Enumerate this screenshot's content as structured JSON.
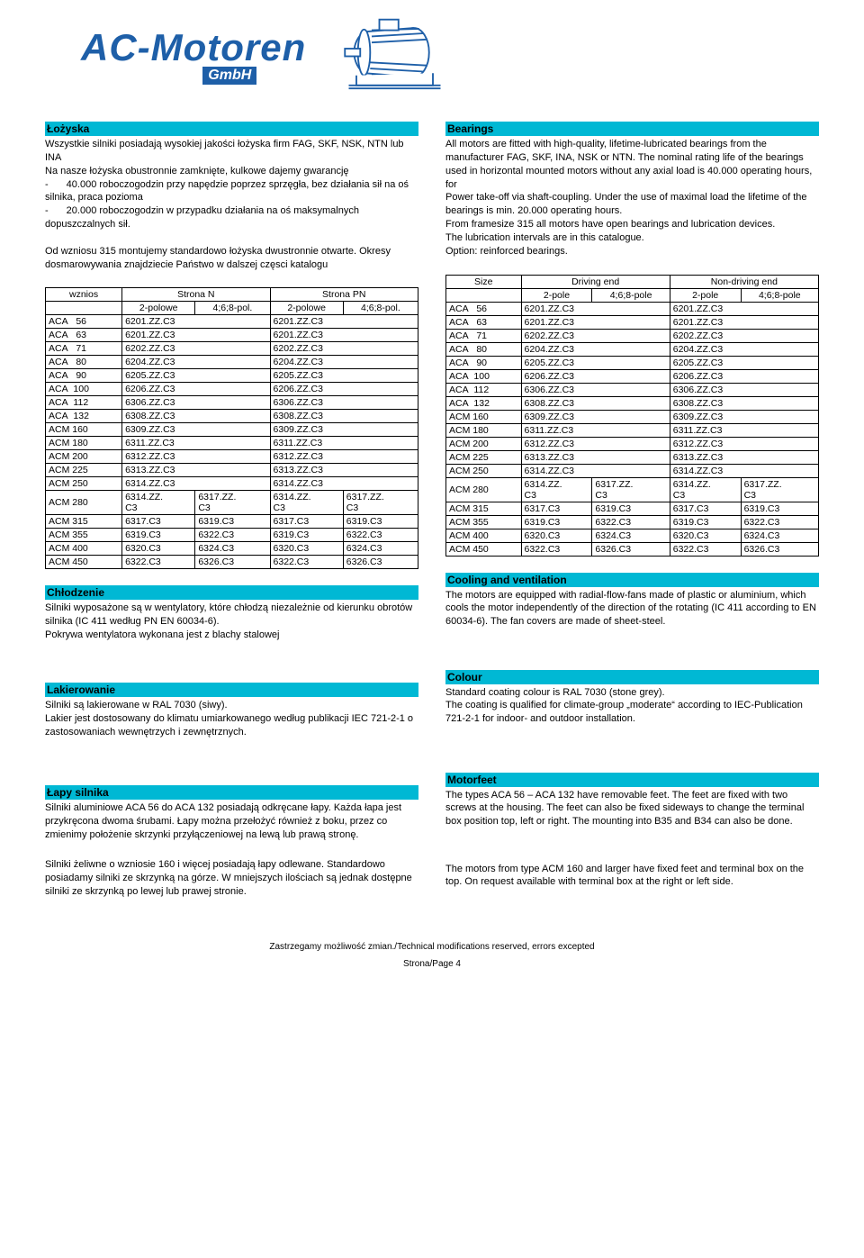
{
  "logo": {
    "main": "AC-Motoren",
    "sub": "GmbH"
  },
  "left": {
    "bearings": {
      "title": "Łożyska",
      "body": "Wszystkie silniki posiadają wysokiej jakości łożyska firm FAG, SKF, NSK, NTN lub INA\nNa nasze łożyska obustronnie zamknięte, kulkowe dajemy gwarancję\n-<span class='indent'></span>40.000 roboczogodzin przy napędzie poprzez sprzęgła, bez działania sił na oś silnika, praca pozioma\n-<span class='indent'></span>20.000 roboczogodzin w przypadku działania na oś maksymalnych dopuszczalnych sił.\n\nOd wzniosu 315 montujemy standardowo łożyska dwustronnie otwarte. Okresy dosmarowywania znajdziecie Państwo w dalszej częsci katalogu"
    },
    "table": {
      "h1": "wznios",
      "h2": "Strona N",
      "h3": "Strona PN",
      "sub1": "2-polowe",
      "sub2": "4;6;8-pol.",
      "sub3": "2-polowe",
      "sub4": "4;6;8-pol."
    },
    "cooling": {
      "title": "Chłodzenie",
      "body": "Silniki wyposażone są w wentylatory, które chłodzą niezależnie od kierunku obrotów silnika (IC 411 według PN EN 60034-6).\nPokrywa wentylatora wykonana jest z blachy stalowej"
    },
    "paint": {
      "title": "Lakierowanie",
      "body": "Silniki są lakierowane w RAL 7030 (siwy).\nLakier jest dostosowany do klimatu umiarkowanego według publikacji IEC 721-2-1 o zastosowaniach wewnętrzych i zewnętrznych."
    },
    "feet": {
      "title": "Łapy silnika",
      "body": "Silniki aluminiowe  ACA 56 do ACA 132 posiadają odkręcane łapy. Każda łapa jest przykręcona dwoma śrubami.  Łapy można przełożyć również z boku, przez co zmienimy położenie skrzynki przyłączeniowej na lewą lub prawą stronę.",
      "body2": "Silniki żeliwne o wzniosie 160 i więcej posiadają łapy odlewane. Standardowo posiadamy silniki ze skrzynką na górze.  W mniejszych ilościach są jednak dostępne silniki ze skrzynką po lewej lub prawej stronie."
    }
  },
  "right": {
    "bearings": {
      "title": "Bearings",
      "body": "All motors are fitted with high-quality, lifetime-lubricated bearings from the manufacturer FAG, SKF, INA, NSK or NTN. The nominal rating life of the bearings used in horizontal mounted motors without any axial load is 40.000 operating hours, for\nPower take-off via shaft-coupling. Under the use of maximal load the lifetime of the bearings is min. 20.000 operating hours.\nFrom framesize 315 all motors have open bearings and lubrication devices.\nThe lubrication intervals are in this catalogue.\nOption: reinforced bearings."
    },
    "table": {
      "h1": "Size",
      "h2": "Driving end",
      "h3": "Non-driving end",
      "sub1": "2-pole",
      "sub2": "4;6;8-pole",
      "sub3": "2-pole",
      "sub4": "4;6;8-pole"
    },
    "cooling": {
      "title": "Cooling and ventilation",
      "body": "The motors are equipped with radial-flow-fans made of plastic or aluminium, which cools the motor independently of the direction of the rotating (IC 411 according to  EN 60034-6). The fan covers are made of sheet-steel."
    },
    "paint": {
      "title": "Colour",
      "body": "Standard coating colour is RAL 7030 (stone grey).\nThe coating is qualified for climate-group „moderate“ according to IEC-Publication 721-2-1 for indoor- and outdoor installation."
    },
    "feet": {
      "title": "Motorfeet",
      "body": "The types ACA 56 – ACA 132 have removable feet. The feet are fixed with two screws at the housing. The feet can also be fixed sideways to change the terminal box position top, left or right. The mounting into B35 and B34 can also be done.",
      "body2": "The motors from type ACM 160 and larger have fixed feet and terminal box on the top. On request available with terminal box at the right or left side."
    }
  },
  "rows_simple": [
    [
      "ACA   56",
      "6201.ZZ.C3",
      "6201.ZZ.C3"
    ],
    [
      "ACA   63",
      "6201.ZZ.C3",
      "6201.ZZ.C3"
    ],
    [
      "ACA   71",
      "6202.ZZ.C3",
      "6202.ZZ.C3"
    ],
    [
      "ACA   80",
      "6204.ZZ.C3",
      "6204.ZZ.C3"
    ],
    [
      "ACA   90",
      "6205.ZZ.C3",
      "6205.ZZ.C3"
    ],
    [
      "ACA  100",
      "6206.ZZ.C3",
      "6206.ZZ.C3"
    ],
    [
      "ACA  112",
      "6306.ZZ.C3",
      "6306.ZZ.C3"
    ],
    [
      "ACA  132",
      "6308.ZZ.C3",
      "6308.ZZ.C3"
    ],
    [
      "ACM 160",
      "6309.ZZ.C3",
      "6309.ZZ.C3"
    ],
    [
      "ACM 180",
      "6311.ZZ.C3",
      "6311.ZZ.C3"
    ],
    [
      "ACM 200",
      "6312.ZZ.C3",
      "6312.ZZ.C3"
    ],
    [
      "ACM 225",
      "6313.ZZ.C3",
      "6313.ZZ.C3"
    ],
    [
      "ACM 250",
      "6314.ZZ.C3",
      "6314.ZZ.C3"
    ]
  ],
  "row280": [
    "ACM 280",
    "6314.ZZ.\nC3",
    "6317.ZZ.\nC3",
    "6314.ZZ.\nC3",
    "6317.ZZ.\nC3"
  ],
  "rows_quad": [
    [
      "ACM 315",
      "6317.C3",
      "6319.C3",
      "6317.C3",
      "6319.C3"
    ],
    [
      "ACM 355",
      "6319.C3",
      "6322.C3",
      "6319.C3",
      "6322.C3"
    ],
    [
      "ACM 400",
      "6320.C3",
      "6324.C3",
      "6320.C3",
      "6324.C3"
    ],
    [
      "ACM 450",
      "6322.C3",
      "6326.C3",
      "6322.C3",
      "6326.C3"
    ]
  ],
  "footer": {
    "line1": "Zastrzegamy możliwość zmian./Technical modifications reserved, errors excepted",
    "line2": "Strona/Page 4"
  }
}
